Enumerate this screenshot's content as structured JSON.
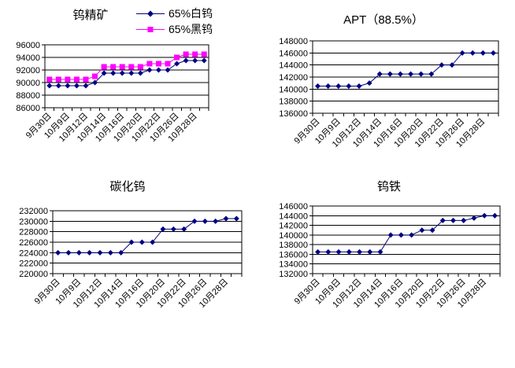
{
  "page": {
    "background": "#ffffff",
    "grid_color": "#000000",
    "axis_color": "#000000"
  },
  "chart_data": [
    {
      "type": "line",
      "title": "钨精矿",
      "categories": [
        "9月30日",
        "",
        "10月9日",
        "",
        "10月12日",
        "",
        "10月14日",
        "",
        "10月16日",
        "",
        "10月20日",
        "",
        "10月22日",
        "",
        "10月26日",
        "",
        "10月28日",
        ""
      ],
      "series": [
        {
          "name": "65%白钨",
          "color": "#000080",
          "marker": "diamond",
          "values": [
            89500,
            89500,
            89500,
            89500,
            89500,
            90000,
            91500,
            91500,
            91500,
            91500,
            91500,
            92000,
            92000,
            92000,
            93000,
            93500,
            93500,
            93500
          ]
        },
        {
          "name": "65%黑钨",
          "color": "#FF00FF",
          "marker": "square",
          "values": [
            90500,
            90500,
            90500,
            90500,
            90500,
            91000,
            92500,
            92500,
            92500,
            92500,
            92500,
            93000,
            93000,
            93000,
            94000,
            94500,
            94500,
            94500
          ]
        }
      ],
      "ylim": [
        86000,
        96000
      ],
      "ytick_step": 2000,
      "grid": true,
      "legend_position": "top-right"
    },
    {
      "type": "line",
      "title": "APT（88.5%）",
      "categories": [
        "9月30日",
        "",
        "10月9日",
        "",
        "10月12日",
        "",
        "10月14日",
        "",
        "10月16日",
        "",
        "10月20日",
        "",
        "10月22日",
        "",
        "10月26日",
        "",
        "10月28日",
        ""
      ],
      "series": [
        {
          "color": "#000080",
          "marker": "diamond",
          "values": [
            140500,
            140500,
            140500,
            140500,
            140500,
            141000,
            142500,
            142500,
            142500,
            142500,
            142500,
            142500,
            144000,
            144000,
            146000,
            146000,
            146000,
            146000
          ]
        }
      ],
      "ylim": [
        136000,
        148000
      ],
      "ytick_step": 2000,
      "grid": true,
      "legend_position": "none"
    },
    {
      "type": "line",
      "title": "碳化钨",
      "categories": [
        "9月30日",
        "",
        "10月9日",
        "",
        "10月12日",
        "",
        "10月14日",
        "",
        "10月16日",
        "",
        "10月20日",
        "",
        "10月22日",
        "",
        "10月26日",
        "",
        "10月28日",
        ""
      ],
      "series": [
        {
          "color": "#000080",
          "marker": "diamond",
          "values": [
            224000,
            224000,
            224000,
            224000,
            224000,
            224000,
            224000,
            226000,
            226000,
            226000,
            228500,
            228500,
            228500,
            230000,
            230000,
            230000,
            230500,
            230500
          ]
        }
      ],
      "ylim": [
        220000,
        232000
      ],
      "ytick_step": 2000,
      "grid": true,
      "legend_position": "none"
    },
    {
      "type": "line",
      "title": "钨铁",
      "categories": [
        "9月30日",
        "",
        "10月9日",
        "",
        "10月12日",
        "",
        "10月14日",
        "",
        "10月16日",
        "",
        "10月20日",
        "",
        "10月22日",
        "",
        "10月26日",
        "",
        "10月28日",
        ""
      ],
      "series": [
        {
          "color": "#000080",
          "marker": "diamond",
          "values": [
            136500,
            136500,
            136500,
            136500,
            136500,
            136500,
            136500,
            140000,
            140000,
            140000,
            141000,
            141000,
            143000,
            143000,
            143000,
            143500,
            144000,
            144000
          ]
        }
      ],
      "ylim": [
        132000,
        146000
      ],
      "ytick_step": 2000,
      "grid": true,
      "legend_position": "none"
    }
  ]
}
